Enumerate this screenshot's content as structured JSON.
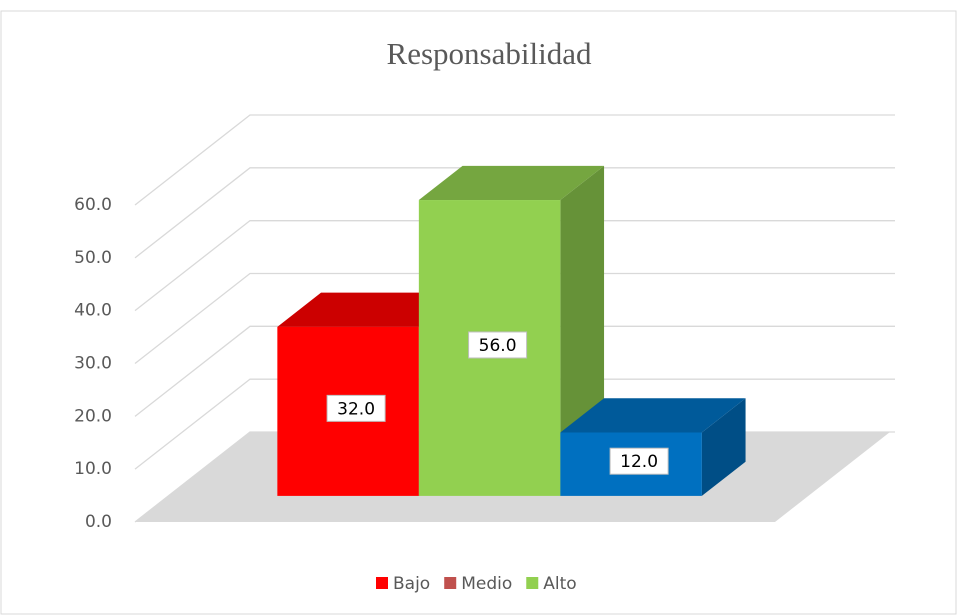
{
  "chart_data": {
    "type": "bar3d",
    "title": "Responsabilidad",
    "categories": [
      "Bajo",
      "Medio",
      "Alto"
    ],
    "legend_colors": [
      "#ff0000",
      "#c0504d",
      "#92d050"
    ],
    "bars": [
      {
        "values": [
          32
        ],
        "value_labels": [
          "32.0"
        ],
        "color": "#ff0000"
      },
      {
        "values": [
          56
        ],
        "value_labels": [
          "56.0"
        ],
        "color": "#92d050"
      },
      {
        "values": [
          12
        ],
        "value_labels": [
          "12.0"
        ],
        "color": "#0070c0"
      }
    ],
    "ylim": [
      0,
      60
    ],
    "yticks": [
      {
        "value": 0,
        "label": "0.0"
      },
      {
        "value": 10,
        "label": "10.0"
      },
      {
        "value": 20,
        "label": "20.0"
      },
      {
        "value": 30,
        "label": "30.0"
      },
      {
        "value": 40,
        "label": "40.0"
      },
      {
        "value": 50,
        "label": "50.0"
      },
      {
        "value": 60,
        "label": "60.0"
      }
    ],
    "grid": true,
    "legend": "bottom"
  }
}
